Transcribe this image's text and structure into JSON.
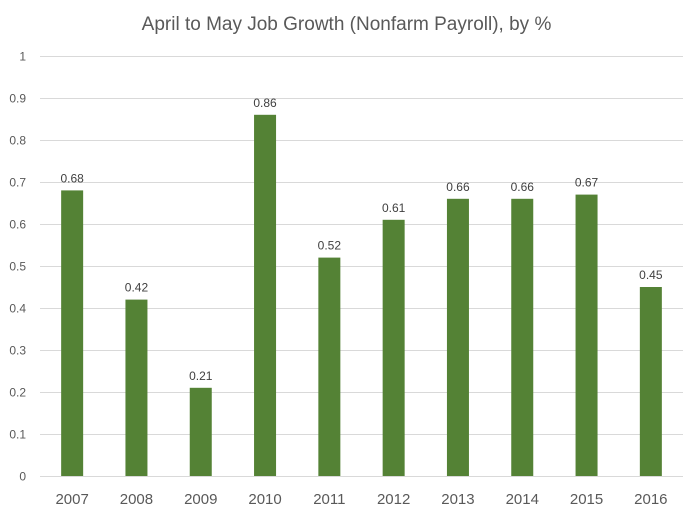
{
  "chart_data": {
    "type": "bar",
    "title": "April to May Job Growth (Nonfarm Payroll), by %",
    "xlabel": "",
    "ylabel": "",
    "categories": [
      "2007",
      "2008",
      "2009",
      "2010",
      "2011",
      "2012",
      "2013",
      "2014",
      "2015",
      "2016"
    ],
    "values": [
      0.68,
      0.42,
      0.21,
      0.86,
      0.52,
      0.61,
      0.66,
      0.66,
      0.67,
      0.45
    ],
    "data_labels": [
      "0.68",
      "0.42",
      "0.21",
      "0.86",
      "0.52",
      "0.61",
      "0.66",
      "0.66",
      "0.67",
      "0.45"
    ],
    "ylim": [
      0,
      1
    ],
    "yticks": [
      0,
      0.1,
      0.2,
      0.3,
      0.4,
      0.5,
      0.6,
      0.7,
      0.8,
      0.9,
      1
    ],
    "ytick_labels": [
      "0",
      "0.1",
      "0.2",
      "0.3",
      "0.4",
      "0.5",
      "0.6",
      "0.7",
      "0.8",
      "0.9",
      "1"
    ],
    "grid": true,
    "legend": "none",
    "colors": {
      "bar": "#548235",
      "grid": "#d9d9d9",
      "text": "#595959"
    }
  }
}
